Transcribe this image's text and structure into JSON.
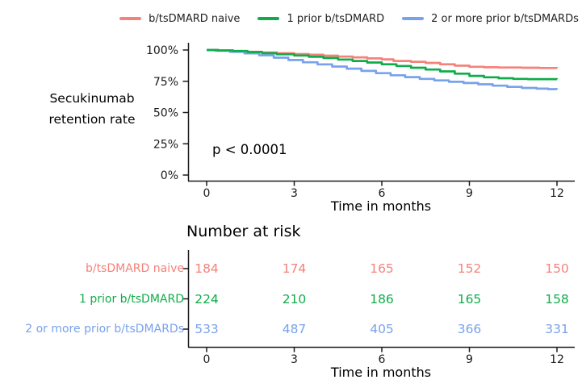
{
  "figure": {
    "legend": [
      {
        "label": "b/tsDMARD naive",
        "color": "#F4827A"
      },
      {
        "label": "1 prior b/tsDMARD",
        "color": "#10AC49"
      },
      {
        "label": "2 or more prior b/tsDMARDs",
        "color": "#78A2EC"
      }
    ],
    "y_axis_title_line1": "Secukinumab",
    "y_axis_title_line2": "retention rate",
    "p_value": "p < 0.0001",
    "axis_color": "#1c1c1c"
  },
  "chart_data": {
    "type": "line",
    "subtype": "kaplan-meier-step",
    "title": "",
    "xlabel": "Time in months",
    "ylabel": "Secukinumab retention rate",
    "annotation": "p < 0.0001",
    "x_ticks": [
      "0",
      "3",
      "6",
      "9",
      "12"
    ],
    "y_ticks": [
      "100%",
      "75%",
      "50%",
      "25%",
      "0%"
    ],
    "xlim": [
      0,
      12
    ],
    "ylim": [
      0,
      100
    ],
    "grid": false,
    "legend_position": "top",
    "series": [
      {
        "name": "b/tsDMARD naive",
        "color": "#F4827A",
        "points": [
          [
            0,
            100
          ],
          [
            0.4,
            99.6
          ],
          [
            0.9,
            99.1
          ],
          [
            1.4,
            98.6
          ],
          [
            1.9,
            98.0
          ],
          [
            2.4,
            97.4
          ],
          [
            3,
            96.8
          ],
          [
            3.5,
            96.2
          ],
          [
            4,
            95.5
          ],
          [
            4.5,
            94.8
          ],
          [
            5,
            94.1
          ],
          [
            5.5,
            93.3
          ],
          [
            6,
            92.5
          ],
          [
            6.4,
            91.2
          ],
          [
            7,
            90.6
          ],
          [
            7.5,
            89.7
          ],
          [
            8,
            88.6
          ],
          [
            8.5,
            87.5
          ],
          [
            9,
            86.6
          ],
          [
            9.5,
            86.2
          ],
          [
            10,
            86.0
          ],
          [
            10.8,
            85.8
          ],
          [
            11.4,
            85.6
          ],
          [
            12,
            85.5
          ]
        ]
      },
      {
        "name": "1 prior b/tsDMARD",
        "color": "#10AC49",
        "points": [
          [
            0,
            100
          ],
          [
            0.4,
            99.7
          ],
          [
            0.9,
            99.2
          ],
          [
            1.4,
            98.4
          ],
          [
            1.9,
            97.5
          ],
          [
            2.4,
            96.6
          ],
          [
            3,
            95.6
          ],
          [
            3.5,
            94.6
          ],
          [
            4,
            93.6
          ],
          [
            4.5,
            92.4
          ],
          [
            5,
            91.2
          ],
          [
            5.5,
            90.0
          ],
          [
            6,
            88.6
          ],
          [
            6.5,
            87.2
          ],
          [
            7,
            85.8
          ],
          [
            7.5,
            84.4
          ],
          [
            8,
            82.9
          ],
          [
            8.5,
            81.1
          ],
          [
            9,
            79.3
          ],
          [
            9.5,
            78.2
          ],
          [
            10,
            77.4
          ],
          [
            10.5,
            76.9
          ],
          [
            11,
            76.7
          ],
          [
            12,
            76.6
          ]
        ]
      },
      {
        "name": "2 or more prior b/tsDMARDs",
        "color": "#78A2EC",
        "points": [
          [
            0,
            100
          ],
          [
            0.3,
            99.4
          ],
          [
            0.8,
            98.5
          ],
          [
            1.3,
            97.3
          ],
          [
            1.8,
            95.8
          ],
          [
            2.3,
            93.9
          ],
          [
            2.8,
            92.0
          ],
          [
            3.3,
            90.2
          ],
          [
            3.8,
            88.5
          ],
          [
            4.3,
            86.8
          ],
          [
            4.8,
            85.1
          ],
          [
            5.3,
            83.3
          ],
          [
            5.8,
            81.5
          ],
          [
            6.3,
            79.8
          ],
          [
            6.8,
            78.3
          ],
          [
            7.3,
            76.9
          ],
          [
            7.8,
            75.7
          ],
          [
            8.3,
            74.6
          ],
          [
            8.8,
            73.6
          ],
          [
            9.3,
            72.6
          ],
          [
            9.8,
            71.5
          ],
          [
            10.3,
            70.5
          ],
          [
            10.8,
            69.7
          ],
          [
            11.3,
            69.1
          ],
          [
            11.7,
            68.7
          ],
          [
            12,
            68.5
          ]
        ]
      }
    ]
  },
  "risk_table": {
    "title": "Number at risk",
    "xlabel": "Time in months",
    "x_ticks": [
      "0",
      "3",
      "6",
      "9",
      "12"
    ],
    "rows": [
      {
        "label": "b/tsDMARD naive",
        "color": "#F4827A",
        "values": [
          "184",
          "174",
          "165",
          "152",
          "150"
        ]
      },
      {
        "label": "1 prior b/tsDMARD",
        "color": "#10AC49",
        "values": [
          "224",
          "210",
          "186",
          "165",
          "158"
        ]
      },
      {
        "label": "2 or more prior b/tsDMARDs",
        "color": "#78A2EC",
        "values": [
          "533",
          "487",
          "405",
          "366",
          "331"
        ]
      }
    ]
  }
}
